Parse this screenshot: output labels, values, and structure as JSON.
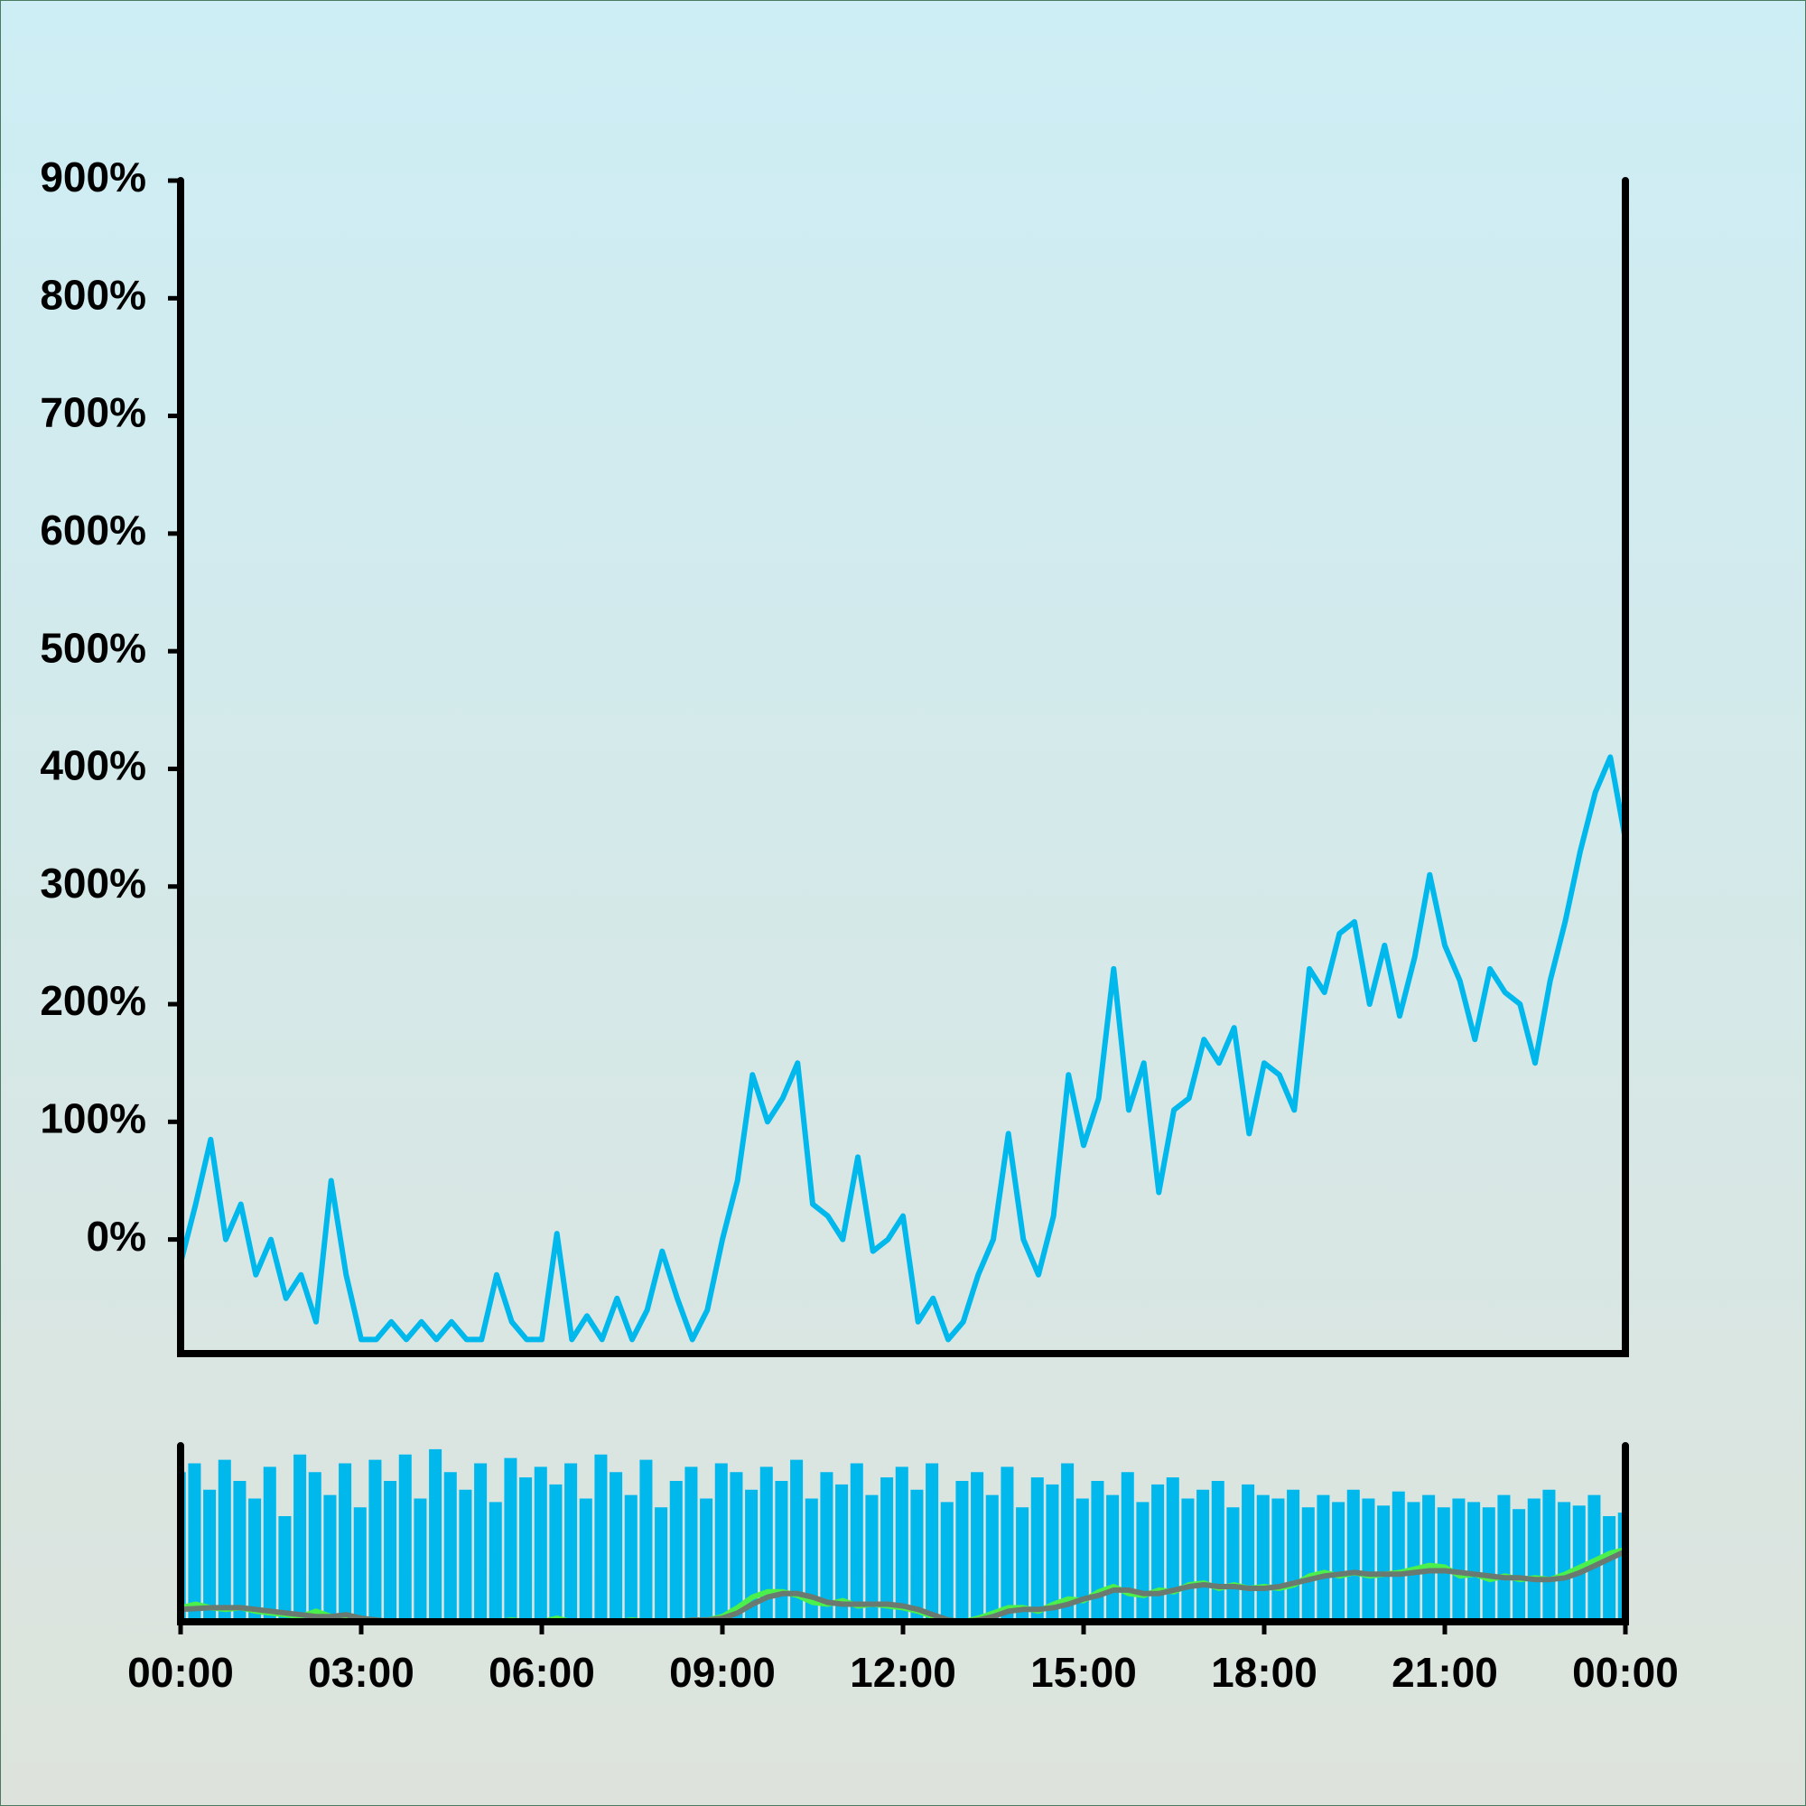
{
  "chart_data": [
    {
      "type": "line",
      "x": [
        0,
        0.25,
        0.5,
        0.75,
        1,
        1.25,
        1.5,
        1.75,
        2,
        2.25,
        2.5,
        2.75,
        3,
        3.25,
        3.5,
        3.75,
        4,
        4.25,
        4.5,
        4.75,
        5,
        5.25,
        5.5,
        5.75,
        6,
        6.25,
        6.5,
        6.75,
        7,
        7.25,
        7.5,
        7.75,
        8,
        8.25,
        8.5,
        8.75,
        9,
        9.25,
        9.5,
        9.75,
        10,
        10.25,
        10.5,
        10.75,
        11,
        11.25,
        11.5,
        11.75,
        12,
        12.25,
        12.5,
        12.75,
        13,
        13.25,
        13.5,
        13.75,
        14,
        14.25,
        14.5,
        14.75,
        15,
        15.25,
        15.5,
        15.75,
        16,
        16.25,
        16.5,
        16.75,
        17,
        17.25,
        17.5,
        17.75,
        18,
        18.25,
        18.5,
        18.75,
        19,
        19.25,
        19.5,
        19.75,
        20,
        20.25,
        20.5,
        20.75,
        21,
        21.25,
        21.5,
        21.75,
        22,
        22.25,
        22.5,
        22.75,
        23,
        23.25,
        23.5,
        23.75,
        24
      ],
      "values": [
        -20,
        30,
        85,
        0,
        30,
        -30,
        0,
        -50,
        -30,
        -70,
        50,
        -30,
        -85,
        -85,
        -70,
        -85,
        -70,
        -85,
        -70,
        -85,
        -85,
        -30,
        -70,
        -85,
        -85,
        5,
        -85,
        -65,
        -85,
        -50,
        -85,
        -60,
        -10,
        -50,
        -85,
        -60,
        0,
        50,
        140,
        100,
        120,
        150,
        30,
        20,
        0,
        70,
        -10,
        0,
        20,
        -70,
        -50,
        -85,
        -70,
        -30,
        0,
        90,
        0,
        -30,
        20,
        140,
        80,
        120,
        230,
        110,
        150,
        40,
        110,
        120,
        170,
        150,
        180,
        90,
        150,
        140,
        110,
        230,
        210,
        260,
        270,
        200,
        250,
        190,
        240,
        310,
        250,
        220,
        170,
        230,
        210,
        200,
        150,
        220,
        270,
        330,
        380,
        410,
        340
      ],
      "color": "#00b8ec",
      "xlim": [
        0,
        24
      ],
      "ylim": [
        -97,
        900
      ],
      "yticks": [
        {
          "value": 0,
          "label": "0%"
        },
        {
          "value": 100,
          "label": "100%"
        },
        {
          "value": 200,
          "label": "200%"
        },
        {
          "value": 300,
          "label": "300%"
        },
        {
          "value": 400,
          "label": "400%"
        },
        {
          "value": 500,
          "label": "500%"
        },
        {
          "value": 600,
          "label": "600%"
        },
        {
          "value": 700,
          "label": "700%"
        },
        {
          "value": 800,
          "label": "800%"
        },
        {
          "value": 900,
          "label": "900%"
        }
      ]
    },
    {
      "type": "bar",
      "x": [
        0,
        0.25,
        0.5,
        0.75,
        1,
        1.25,
        1.5,
        1.75,
        2,
        2.25,
        2.5,
        2.75,
        3,
        3.25,
        3.5,
        3.75,
        4,
        4.25,
        4.5,
        4.75,
        5,
        5.25,
        5.5,
        5.75,
        6,
        6.25,
        6.5,
        6.75,
        7,
        7.25,
        7.5,
        7.75,
        8,
        8.25,
        8.5,
        8.75,
        9,
        9.25,
        9.5,
        9.75,
        10,
        10.25,
        10.5,
        10.75,
        11,
        11.25,
        11.5,
        11.75,
        12,
        12.25,
        12.5,
        12.75,
        13,
        13.25,
        13.5,
        13.75,
        14,
        14.25,
        14.5,
        14.75,
        15,
        15.25,
        15.5,
        15.75,
        16,
        16.25,
        16.5,
        16.75,
        17,
        17.25,
        17.5,
        17.75,
        18,
        18.25,
        18.5,
        18.75,
        19,
        19.25,
        19.5,
        19.75,
        20,
        20.25,
        20.5,
        20.75,
        21,
        21.25,
        21.5,
        21.75,
        22,
        22.25,
        22.5,
        22.75,
        23,
        23.25,
        23.5,
        23.75,
        24
      ],
      "series": [
        {
          "type": "bar",
          "color": "#00b8ec",
          "values": [
            85,
            90,
            75,
            92,
            80,
            70,
            88,
            60,
            95,
            85,
            72,
            90,
            65,
            92,
            80,
            95,
            70,
            98,
            85,
            75,
            90,
            68,
            93,
            82,
            88,
            78,
            90,
            70,
            95,
            85,
            72,
            92,
            65,
            80,
            88,
            70,
            90,
            85,
            75,
            88,
            80,
            92,
            70,
            85,
            78,
            90,
            72,
            82,
            88,
            75,
            90,
            68,
            80,
            85,
            72,
            88,
            65,
            82,
            78,
            90,
            70,
            80,
            72,
            85,
            68,
            78,
            82,
            70,
            75,
            80,
            65,
            78,
            72,
            70,
            75,
            65,
            72,
            68,
            75,
            70,
            66,
            74,
            68,
            72,
            65,
            70,
            68,
            65,
            72,
            64,
            70,
            75,
            68,
            66,
            72,
            60,
            62
          ]
        },
        {
          "type": "line",
          "color": "#4cf04c",
          "values": [
            8,
            10,
            8,
            7,
            8,
            6,
            5,
            4,
            3,
            6,
            3,
            3,
            1,
            0,
            0,
            0,
            0,
            0,
            0,
            0,
            0,
            0,
            1,
            0,
            0,
            2,
            0,
            0,
            0,
            0,
            1,
            0,
            0,
            0,
            0,
            1,
            3,
            8,
            14,
            17,
            17,
            15,
            11,
            10,
            12,
            9,
            10,
            9,
            8,
            6,
            3,
            0,
            0,
            2,
            5,
            8,
            8,
            6,
            10,
            13,
            12,
            17,
            20,
            16,
            15,
            18,
            17,
            21,
            22,
            19,
            21,
            19,
            20,
            19,
            21,
            26,
            28,
            26,
            28,
            26,
            27,
            28,
            30,
            32,
            31,
            26,
            27,
            24,
            26,
            24,
            25,
            24,
            27,
            31,
            35,
            39,
            41
          ]
        },
        {
          "type": "line",
          "color": "#6b7a70",
          "values": [
            7,
            7.5,
            8,
            8,
            8,
            7,
            6,
            5,
            4,
            3,
            3,
            4,
            2,
            1,
            0,
            0,
            0,
            0,
            0,
            0,
            0,
            0,
            0,
            0,
            0,
            0,
            0,
            0,
            0,
            0,
            0,
            0,
            0,
            0,
            1,
            1,
            2,
            5,
            10,
            14,
            16,
            16,
            14,
            11,
            10,
            10,
            10,
            10,
            9,
            7,
            4,
            1,
            0,
            1,
            3,
            6,
            7,
            7,
            8,
            10,
            13,
            15,
            18,
            18,
            16,
            16,
            18,
            20,
            21,
            20,
            20,
            19,
            19,
            20,
            22,
            24,
            26,
            27,
            28,
            27,
            27,
            27,
            28,
            29,
            29,
            28,
            27,
            26,
            25,
            25,
            24,
            24,
            25,
            28,
            32,
            36,
            40
          ]
        }
      ],
      "xlim": [
        0,
        24
      ],
      "ylim": [
        0,
        100
      ],
      "xticks": [
        {
          "value": 0,
          "label": "00:00"
        },
        {
          "value": 3,
          "label": "03:00"
        },
        {
          "value": 6,
          "label": "06:00"
        },
        {
          "value": 9,
          "label": "09:00"
        },
        {
          "value": 12,
          "label": "12:00"
        },
        {
          "value": 15,
          "label": "15:00"
        },
        {
          "value": 18,
          "label": "18:00"
        },
        {
          "value": 21,
          "label": "21:00"
        },
        {
          "value": 24,
          "label": "00:00"
        }
      ]
    }
  ]
}
